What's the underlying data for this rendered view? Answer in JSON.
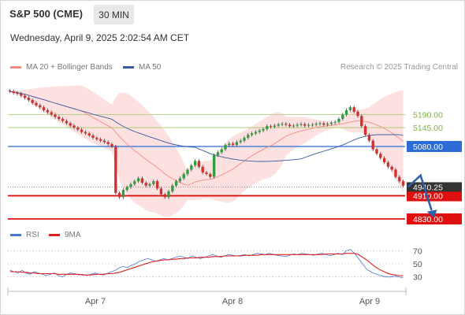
{
  "header": {
    "title": "S&P 500 (CME)",
    "timeframe": "30 MIN"
  },
  "datetime": "Wednesday, April 9, 2025 2:02:54 AM CET",
  "legend": {
    "ma20": {
      "label": "MA 20 + Bollinger Bands",
      "color": "#f28b82"
    },
    "ma50": {
      "label": "MA 50",
      "color": "#3a5ba0"
    }
  },
  "copyright": "Research © 2025 Trading Central",
  "rsi_legend": {
    "rsi": {
      "label": "RSI",
      "color": "#4a78d0"
    },
    "ma9": {
      "label": "9MA",
      "color": "#e02020"
    }
  },
  "chart_data": [
    {
      "type": "candlestick",
      "title": "",
      "x_ticks": [
        "Apr 7",
        "Apr 8",
        "Apr 9"
      ],
      "close": [
        5270,
        5265,
        5262,
        5255,
        5248,
        5240,
        5230,
        5222,
        5215,
        5205,
        5198,
        5190,
        5182,
        5175,
        5168,
        5160,
        5152,
        5145,
        5138,
        5130,
        5125,
        5118,
        5110,
        5105,
        5100,
        5095,
        5088,
        5080,
        4920,
        4905,
        4930,
        4940,
        4950,
        4960,
        4970,
        4955,
        4945,
        4950,
        4960,
        4935,
        4915,
        4905,
        4925,
        4945,
        4960,
        4970,
        4985,
        5000,
        5015,
        5030,
        5010,
        4990,
        4985,
        4975,
        5050,
        5060,
        5070,
        5085,
        5090,
        5085,
        5095,
        5100,
        5110,
        5120,
        5125,
        5130,
        5135,
        5140,
        5150,
        5148,
        5152,
        5156,
        5158,
        5155,
        5150,
        5152,
        5155,
        5157,
        5152,
        5154,
        5155,
        5158,
        5160,
        5155,
        5158,
        5162,
        5165,
        5175,
        5190,
        5205,
        5215,
        5200,
        5185,
        5150,
        5120,
        5100,
        5070,
        5055,
        5040,
        5025,
        5010,
        5000,
        4975,
        4960,
        4945
      ],
      "high": 5280,
      "low": 4910,
      "overlays": {
        "ma20": "MA 20 + Bollinger Bands",
        "ma50": "MA 50"
      },
      "horizontal_levels": [
        {
          "label": "5190.00",
          "value": 5190,
          "style": "resistance-light"
        },
        {
          "label": "5145.00",
          "value": 5145,
          "style": "resistance-light"
        },
        {
          "label": "5080.00",
          "value": 5080,
          "style": "pivot"
        },
        {
          "label": "4910.00",
          "value": 4910,
          "style": "support"
        },
        {
          "label": "4830.00",
          "value": 4830,
          "style": "support"
        }
      ],
      "current_price_label": "4940.25",
      "y_range": [
        4830,
        5300
      ]
    },
    {
      "type": "line",
      "title": "RSI",
      "y_ticks": [
        "70",
        "50",
        "30"
      ],
      "y_range": [
        20,
        80
      ],
      "series": [
        {
          "name": "RSI",
          "values": [
            40,
            38,
            36,
            40,
            36,
            34,
            38,
            36,
            34,
            32,
            34,
            36,
            32,
            30,
            34,
            36,
            35,
            33,
            34,
            32,
            34,
            36,
            34,
            33,
            35,
            38,
            40,
            44,
            46,
            44,
            48,
            50,
            54,
            56,
            58,
            56,
            54,
            56,
            58,
            56,
            58,
            60,
            62,
            60,
            58,
            62,
            60,
            58,
            60,
            62,
            64,
            62,
            60,
            62,
            64,
            63,
            62,
            63,
            64,
            62,
            64,
            66,
            65,
            64,
            66,
            64,
            63,
            62,
            61,
            63,
            65,
            64,
            66,
            65,
            64,
            63,
            65,
            66,
            64,
            62,
            64,
            66,
            64,
            70,
            72,
            66,
            58,
            50,
            42,
            38,
            35,
            33,
            31,
            30,
            30,
            31,
            30,
            29
          ]
        },
        {
          "name": "9MA",
          "values": [
            38,
            38,
            38,
            37,
            37,
            36,
            36,
            35,
            35,
            35,
            35,
            35,
            34,
            34,
            34,
            34,
            34,
            34,
            33,
            33,
            33,
            34,
            34,
            34,
            35,
            35,
            36,
            37,
            39,
            41,
            43,
            45,
            47,
            49,
            51,
            53,
            54,
            55,
            56,
            56,
            57,
            57,
            58,
            58,
            59,
            59,
            59,
            60,
            60,
            60,
            61,
            61,
            61,
            62,
            62,
            62,
            62,
            62,
            63,
            63,
            63,
            63,
            64,
            64,
            64,
            64,
            64,
            64,
            64,
            64,
            64,
            64,
            64,
            64,
            64,
            64,
            64,
            64,
            65,
            65,
            65,
            65,
            65,
            66,
            66,
            66,
            64,
            60,
            56,
            51,
            46,
            42,
            39,
            36,
            34,
            33,
            32,
            32
          ]
        }
      ]
    }
  ]
}
